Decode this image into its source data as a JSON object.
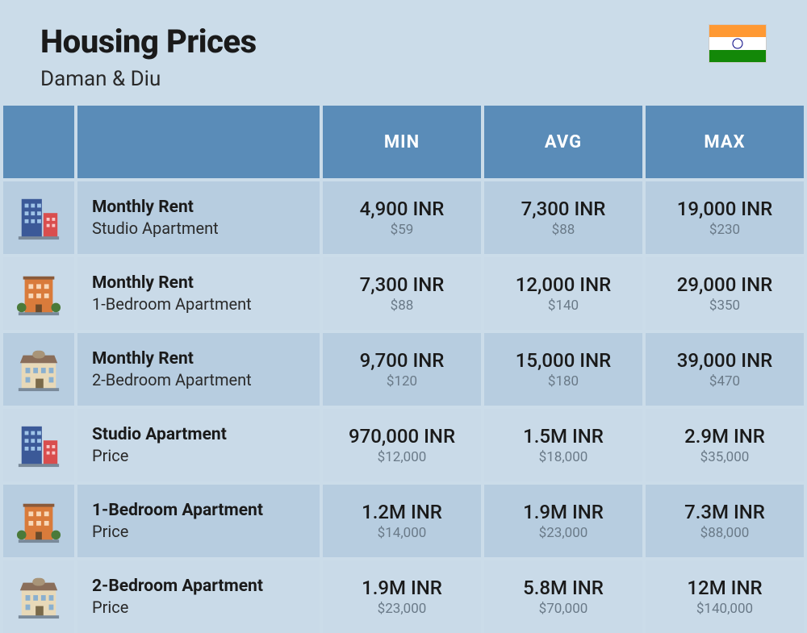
{
  "header": {
    "title": "Housing Prices",
    "subtitle": "Daman & Diu"
  },
  "flag": {
    "stripe1_color": "#ff9933",
    "stripe2_color": "#ffffff",
    "stripe3_color": "#138808",
    "wheel_color": "#000080"
  },
  "table": {
    "type": "table",
    "header_bg": "#5a8cb8",
    "header_text_color": "#ffffff",
    "row_odd_bg": "#b7cde0",
    "row_even_bg": "#c9dae8",
    "label_main_fontsize": 21,
    "label_sub_fontsize": 20,
    "val_main_fontsize": 24,
    "val_sub_fontsize": 17,
    "val_sub_color": "#6a7a88",
    "columns": {
      "min": "MIN",
      "avg": "AVG",
      "max": "MAX"
    },
    "rows": [
      {
        "icon": "building-tall",
        "label_main": "Monthly Rent",
        "label_sub": "Studio Apartment",
        "min_main": "4,900 INR",
        "min_sub": "$59",
        "avg_main": "7,300 INR",
        "avg_sub": "$88",
        "max_main": "19,000 INR",
        "max_sub": "$230"
      },
      {
        "icon": "building-orange",
        "label_main": "Monthly Rent",
        "label_sub": "1-Bedroom Apartment",
        "min_main": "7,300 INR",
        "min_sub": "$88",
        "avg_main": "12,000 INR",
        "avg_sub": "$140",
        "max_main": "29,000 INR",
        "max_sub": "$350"
      },
      {
        "icon": "building-house",
        "label_main": "Monthly Rent",
        "label_sub": "2-Bedroom Apartment",
        "min_main": "9,700 INR",
        "min_sub": "$120",
        "avg_main": "15,000 INR",
        "avg_sub": "$180",
        "max_main": "39,000 INR",
        "max_sub": "$470"
      },
      {
        "icon": "building-tall",
        "label_main": "Studio Apartment",
        "label_sub": "Price",
        "min_main": "970,000 INR",
        "min_sub": "$12,000",
        "avg_main": "1.5M INR",
        "avg_sub": "$18,000",
        "max_main": "2.9M INR",
        "max_sub": "$35,000"
      },
      {
        "icon": "building-orange",
        "label_main": "1-Bedroom Apartment",
        "label_sub": "Price",
        "min_main": "1.2M INR",
        "min_sub": "$14,000",
        "avg_main": "1.9M INR",
        "avg_sub": "$23,000",
        "max_main": "7.3M INR",
        "max_sub": "$88,000"
      },
      {
        "icon": "building-house",
        "label_main": "2-Bedroom Apartment",
        "label_sub": "Price",
        "min_main": "1.9M INR",
        "min_sub": "$23,000",
        "avg_main": "5.8M INR",
        "avg_sub": "$70,000",
        "max_main": "12M INR",
        "max_sub": "$140,000"
      }
    ]
  },
  "icons": {
    "building-tall": {
      "main_color": "#3b5998",
      "accent_color": "#d94e4e"
    },
    "building-orange": {
      "main_color": "#d97b3b",
      "accent_color": "#4a7a3a"
    },
    "building-house": {
      "main_color": "#e8d9b8",
      "roof_color": "#8a6e5a"
    }
  }
}
